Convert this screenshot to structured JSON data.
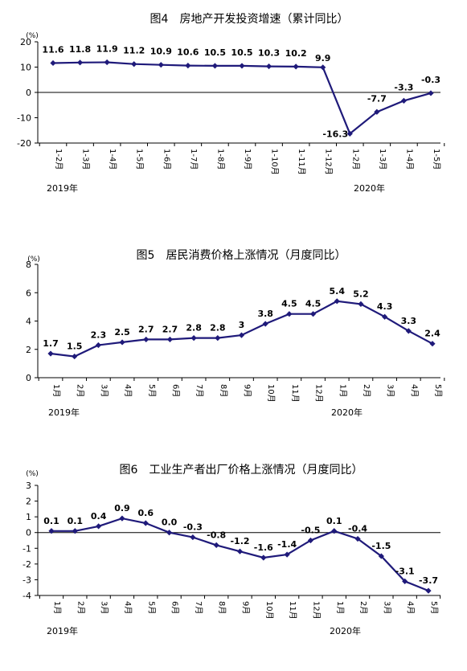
{
  "chart_data": [
    {
      "type": "line",
      "title": "图4　房地产开发投资增速（累计同比）",
      "unit": "(%)",
      "categories": [
        "1-2月",
        "1-3月",
        "1-4月",
        "1-5月",
        "1-6月",
        "1-7月",
        "1-8月",
        "1-9月",
        "1-10月",
        "1-11月",
        "1-12月",
        "1-2月",
        "1-3月",
        "1-4月",
        "1-5月"
      ],
      "year_labels": [
        "2019年",
        "2020年"
      ],
      "values": [
        11.6,
        11.8,
        11.9,
        11.2,
        10.9,
        10.6,
        10.5,
        10.5,
        10.3,
        10.2,
        9.9,
        -16.3,
        -7.7,
        -3.3,
        -0.3
      ],
      "yticks": [
        -20,
        -10,
        0,
        10,
        20
      ],
      "ylim": [
        -20,
        20
      ],
      "color": "#1f1a7a"
    },
    {
      "type": "line",
      "title": "图5　居民消费价格上涨情况（月度同比）",
      "unit": "(%)",
      "categories": [
        "1月",
        "2月",
        "3月",
        "4月",
        "5月",
        "6月",
        "7月",
        "8月",
        "9月",
        "10月",
        "11月",
        "12月",
        "1月",
        "2月",
        "3月",
        "4月",
        "5月"
      ],
      "year_labels": [
        "2019年",
        "2020年"
      ],
      "values": [
        1.7,
        1.5,
        2.3,
        2.5,
        2.7,
        2.7,
        2.8,
        2.8,
        3.0,
        3.8,
        4.5,
        4.5,
        5.4,
        5.2,
        4.3,
        3.3,
        2.4
      ],
      "yticks": [
        0,
        2,
        4,
        6,
        8
      ],
      "ylim": [
        0,
        8
      ],
      "color": "#1f1a7a"
    },
    {
      "type": "line",
      "title": "图6　工业生产者出厂价格上涨情况（月度同比）",
      "unit": "(%)",
      "categories": [
        "1月",
        "2月",
        "3月",
        "4月",
        "5月",
        "6月",
        "7月",
        "8月",
        "9月",
        "10月",
        "11月",
        "12月",
        "1月",
        "2月",
        "3月",
        "4月",
        "5月"
      ],
      "year_labels": [
        "2019年",
        "2020年"
      ],
      "values": [
        0.1,
        0.1,
        0.4,
        0.9,
        0.6,
        0.0,
        -0.3,
        -0.8,
        -1.2,
        -1.6,
        -1.4,
        -0.5,
        0.1,
        -0.4,
        -1.5,
        -3.1,
        -3.7
      ],
      "value_labels": [
        "0.1",
        "0.1",
        "0.4",
        "0.9",
        "0.6",
        "0.0",
        "-0.3",
        "-0.8",
        "-1.2",
        "-1.6",
        "-1.4",
        "-0.5",
        "0.1",
        "-0.4",
        "-1.5",
        "-3.1",
        "-3.7"
      ],
      "yticks": [
        -4,
        -3,
        -2,
        -1,
        0,
        1,
        2,
        3
      ],
      "ylim": [
        -4,
        3
      ],
      "color": "#1f1a7a"
    }
  ]
}
